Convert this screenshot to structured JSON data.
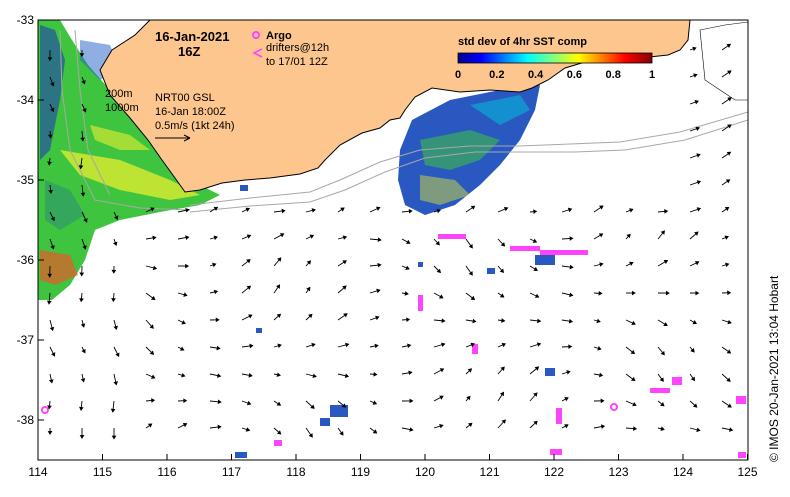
{
  "map": {
    "date": "16-Jan-2021",
    "hour": "16Z",
    "legend_argo": "Argo",
    "legend_drifters_line1": "drifters@12h",
    "legend_drifters_line2": "to 17/01 12Z",
    "isobath_200": "200m",
    "isobath_1000": "1000m",
    "product": "NRT00 GSL",
    "product_time": "16-Jan 18:00Z",
    "scale_label": "0.5m/s (1kt 24h)",
    "colorbar_title": "std dev of 4hr SST comp",
    "colorbar_ticks": [
      "0",
      "0.2",
      "0.4",
      "0.6",
      "0.8",
      "1"
    ],
    "credit": "© IMOS 20-Jan-2021 13:04 Hobart",
    "lat_ticks": [
      "-33",
      "-34",
      "-35",
      "-36",
      "-37",
      "-38"
    ],
    "lon_ticks": [
      "114",
      "115",
      "116",
      "117",
      "118",
      "119",
      "120",
      "121",
      "122",
      "123",
      "124",
      "125"
    ],
    "colors": {
      "land": "#fdc68f",
      "argo": "#ff44ff",
      "sst_green": "#32c832",
      "sst_blue": "#1f3fb0",
      "sst_yellow": "#f0f000"
    }
  }
}
